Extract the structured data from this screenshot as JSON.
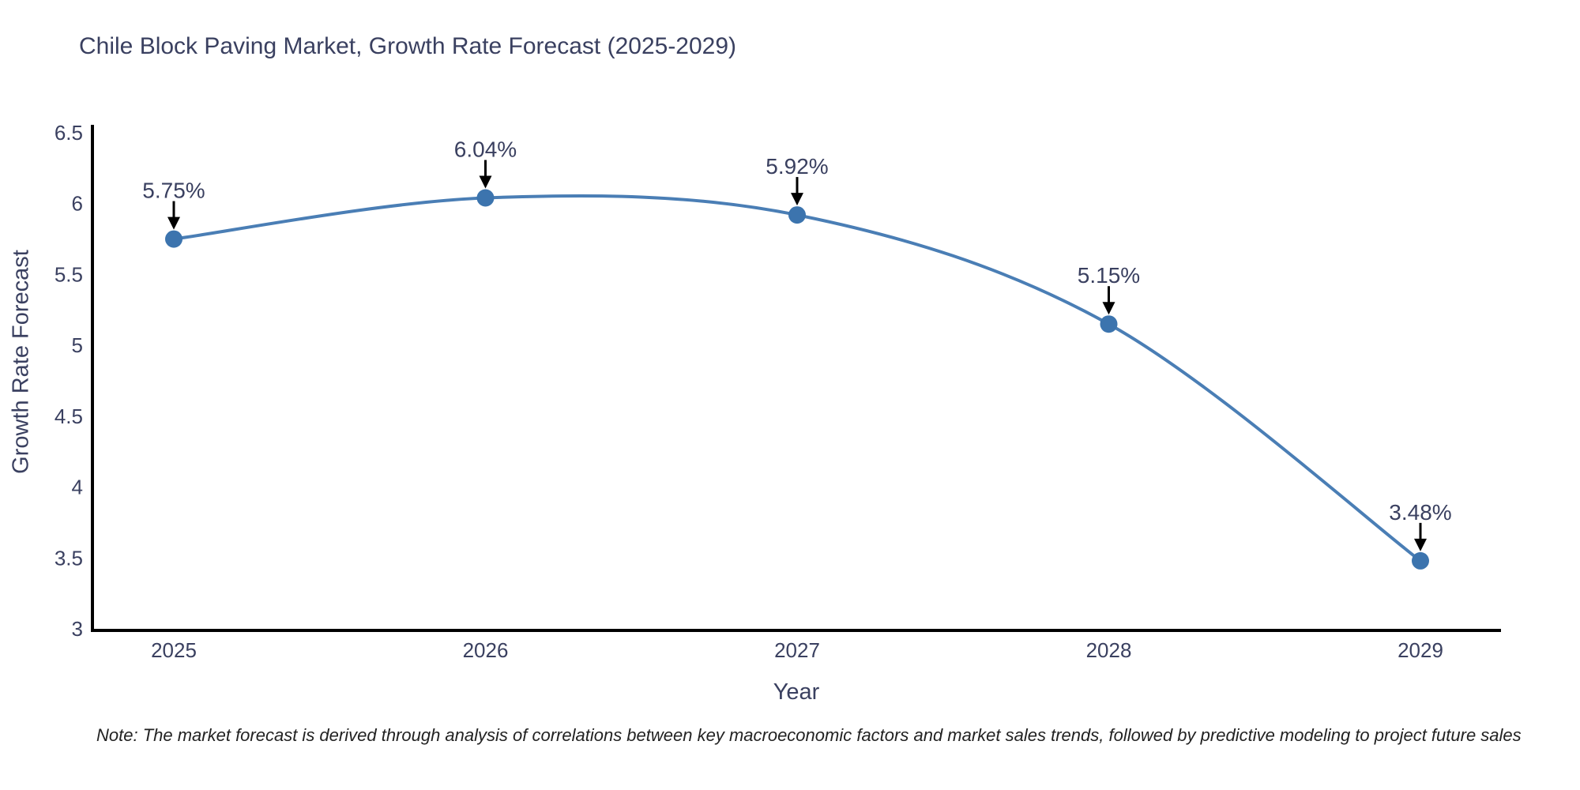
{
  "title": "Chile Block Paving Market, Growth Rate Forecast (2025-2029)",
  "note": "Note: The market forecast is derived through analysis of correlations between key macroeconomic factors and market sales trends, followed by predictive modeling to project future sales",
  "chart_data": {
    "type": "line",
    "line_shape": "spline",
    "title": "Chile Block Paving Market, Growth Rate Forecast (2025-2029)",
    "xlabel": "Year",
    "ylabel": "Growth Rate Forecast",
    "x": [
      2025,
      2026,
      2027,
      2028,
      2029
    ],
    "values": [
      5.75,
      6.04,
      5.92,
      5.15,
      3.48
    ],
    "point_labels": [
      "5.75%",
      "6.04%",
      "5.92%",
      "5.15%",
      "3.48%"
    ],
    "ylim": [
      3,
      6.5
    ],
    "yticks": [
      3,
      3.5,
      4,
      4.5,
      5,
      5.5,
      6,
      6.5
    ],
    "grid": false,
    "legend": "none",
    "colors": {
      "line": "#4a7eb5",
      "marker": "#3c74ae",
      "axis": "#000000",
      "arrow": "#000000",
      "text": "#3a4060"
    }
  }
}
